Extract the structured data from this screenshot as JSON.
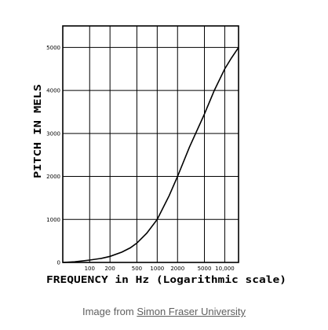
{
  "chart_data": {
    "type": "line",
    "xscale": "log",
    "xlabel": "FREQUENCY in Hz (Logarithmic scale)",
    "ylabel": "PITCH IN MELS",
    "xlim": [
      40,
      16000
    ],
    "ylim": [
      0,
      5500
    ],
    "grid": true,
    "x_ticks": [
      100,
      200,
      500,
      1000,
      2000,
      5000,
      10000
    ],
    "x_tick_labels": [
      "100",
      "200",
      "500",
      "1000",
      "2000",
      "5000",
      "10,000"
    ],
    "y_ticks": [
      0,
      1000,
      2000,
      3000,
      4000,
      5000
    ],
    "y_tick_labels": [
      "0",
      "1000",
      "2000",
      "3000",
      "4000",
      "5000"
    ],
    "series": [
      {
        "x": [
          40,
          60,
          100,
          150,
          200,
          300,
          400,
          500,
          700,
          1000,
          1500,
          2000,
          3000,
          5000,
          7000,
          10000,
          12500,
          16000
        ],
        "y": [
          0,
          15,
          55,
          95,
          140,
          240,
          340,
          450,
          680,
          1000,
          1550,
          2000,
          2680,
          3450,
          4000,
          4500,
          4750,
          5000
        ],
        "color": "#000000"
      }
    ]
  },
  "caption": {
    "prefix": "Image from ",
    "link_text": "Simon Fraser University"
  }
}
